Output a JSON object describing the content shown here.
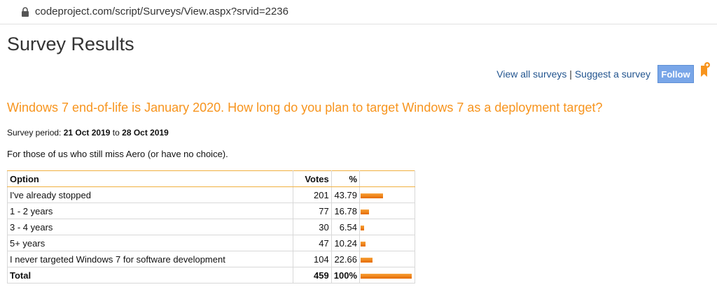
{
  "browser": {
    "url": "codeproject.com/script/Surveys/View.aspx?srvid=2236"
  },
  "header": {
    "title": "Survey Results",
    "links": [
      "View all surveys",
      "Suggest a survey"
    ],
    "separator": "|",
    "follow_button": "Follow"
  },
  "survey": {
    "question": "Windows 7 end-of-life is January 2020. How long do you plan to target Windows 7 as a deployment target?",
    "period_label": "Survey period:",
    "start": "21 Oct 2019",
    "to": "to",
    "end": "28 Oct 2019",
    "description": "For those of us who still miss Aero (or have no choice)."
  },
  "table": {
    "columns": [
      "Option",
      "Votes",
      "%"
    ],
    "rows": [
      {
        "option": "I've already stopped",
        "votes": 201,
        "percent": 43.79
      },
      {
        "option": "1 - 2 years",
        "votes": 77,
        "percent": 16.78
      },
      {
        "option": "3 - 4 years",
        "votes": 30,
        "percent": 6.54
      },
      {
        "option": "5+ years",
        "votes": 47,
        "percent": 10.24
      },
      {
        "option": "I never targeted Windows 7 for software development",
        "votes": 104,
        "percent": 22.66
      }
    ],
    "total": {
      "option": "Total",
      "votes": 459,
      "percent": {
        "value": 100,
        "label": "100%"
      }
    }
  }
}
